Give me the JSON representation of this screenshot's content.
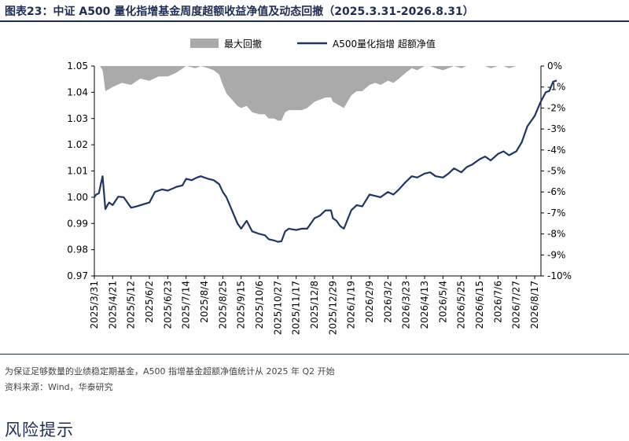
{
  "caption": {
    "prefix": "图表23：",
    "title": "中证 A500 量化指增基金周度超额收益净值及动态回撤（2025.3.31-2026.8.31）"
  },
  "chart_data": {
    "type": "area+line",
    "legend": [
      "最大回撤",
      "A500量化指增 超额净值"
    ],
    "legend_position": "top-center",
    "colors": {
      "drawdown": "#aaaaaa",
      "nav": "#1f3566"
    },
    "x_labels": [
      "2025/3/31",
      "2025/4/21",
      "2025/5/12",
      "2025/6/2",
      "2025/6/23",
      "2025/7/14",
      "2025/8/4",
      "2025/8/25",
      "2025/9/15",
      "2025/10/6",
      "2025/10/27",
      "2025/11/17",
      "2025/12/8",
      "2025/12/29",
      "2026/1/19",
      "2026/2/9",
      "2026/3/2",
      "2026/3/23",
      "2026/4/13",
      "2026/5/4",
      "2026/5/25",
      "2026/6/15",
      "2026/7/6",
      "2026/7/27",
      "2026/8/17"
    ],
    "y_left": {
      "ticks": [
        "0.97",
        "0.98",
        "0.99",
        "1.00",
        "1.01",
        "1.02",
        "1.03",
        "1.04",
        "1.05"
      ],
      "min": 0.97,
      "max": 1.05
    },
    "y_right": {
      "ticks": [
        "0%",
        "-1%",
        "-2%",
        "-3%",
        "-4%",
        "-5%",
        "-6%",
        "-7%",
        "-8%",
        "-9%",
        "-10%"
      ],
      "min": -10,
      "max": 0
    },
    "nav_keypoints": [
      [
        0,
        1.0
      ],
      [
        0.1,
        1.001
      ],
      [
        0.25,
        1.0015
      ],
      [
        0.35,
        1.005
      ],
      [
        0.45,
        1.008
      ],
      [
        0.6,
        0.9955
      ],
      [
        0.8,
        0.998
      ],
      [
        1,
        0.997
      ],
      [
        1.3,
        1.0002
      ],
      [
        1.6,
        1.0
      ],
      [
        2,
        0.996
      ],
      [
        2.3,
        0.9965
      ],
      [
        3,
        0.998
      ],
      [
        3.3,
        1.002
      ],
      [
        3.7,
        1.003
      ],
      [
        4,
        1.0025
      ],
      [
        4.5,
        1.004
      ],
      [
        4.8,
        1.0045
      ],
      [
        5,
        1.007
      ],
      [
        5.3,
        1.0065
      ],
      [
        5.6,
        1.0075
      ],
      [
        5.8,
        1.008
      ],
      [
        6.2,
        1.007
      ],
      [
        6.5,
        1.0065
      ],
      [
        6.8,
        1.005
      ],
      [
        7,
        1.002
      ],
      [
        7.2,
        1.0
      ],
      [
        7.5,
        0.995
      ],
      [
        7.8,
        0.99
      ],
      [
        8,
        0.988
      ],
      [
        8.3,
        0.991
      ],
      [
        8.6,
        0.987
      ],
      [
        9,
        0.986
      ],
      [
        9.3,
        0.9855
      ],
      [
        9.5,
        0.984
      ],
      [
        9.8,
        0.9835
      ],
      [
        10,
        0.983
      ],
      [
        10.2,
        0.9832
      ],
      [
        10.4,
        0.987
      ],
      [
        10.6,
        0.988
      ],
      [
        11,
        0.9875
      ],
      [
        11.3,
        0.988
      ],
      [
        11.6,
        0.988
      ],
      [
        12,
        0.992
      ],
      [
        12.3,
        0.993
      ],
      [
        12.6,
        0.995
      ],
      [
        12.9,
        0.995
      ],
      [
        13,
        0.992
      ],
      [
        13.2,
        0.991
      ],
      [
        13.4,
        0.989
      ],
      [
        13.6,
        0.988
      ],
      [
        14,
        0.995
      ],
      [
        14.3,
        0.997
      ],
      [
        14.6,
        0.9965
      ],
      [
        15,
        1.001
      ],
      [
        15.3,
        1.0005
      ],
      [
        15.6,
        1.0
      ],
      [
        16,
        1.002
      ],
      [
        16.3,
        1.001
      ],
      [
        16.6,
        1.003
      ],
      [
        17,
        1.006
      ],
      [
        17.3,
        1.008
      ],
      [
        17.6,
        1.0075
      ],
      [
        18,
        1.009
      ],
      [
        18.3,
        1.0095
      ],
      [
        18.6,
        1.008
      ],
      [
        19,
        1.0075
      ],
      [
        19.3,
        1.009
      ],
      [
        19.6,
        1.011
      ],
      [
        20,
        1.0095
      ],
      [
        20.3,
        1.0115
      ],
      [
        20.6,
        1.0125
      ],
      [
        21,
        1.0145
      ],
      [
        21.3,
        1.0155
      ],
      [
        21.6,
        1.014
      ],
      [
        22,
        1.0165
      ],
      [
        22.3,
        1.0175
      ],
      [
        22.6,
        1.016
      ],
      [
        23,
        1.0175
      ],
      [
        23.3,
        1.021
      ],
      [
        23.6,
        1.027
      ],
      [
        24,
        1.031
      ],
      [
        24.3,
        1.036
      ],
      [
        24.6,
        1.04
      ],
      [
        24.8,
        1.0405
      ],
      [
        25,
        1.044
      ],
      [
        25.2,
        1.0445
      ]
    ],
    "drawdown_keypoints": [
      [
        0,
        0
      ],
      [
        0.3,
        0
      ],
      [
        0.45,
        -0.2
      ],
      [
        0.6,
        -1.2
      ],
      [
        1.0,
        -1.0
      ],
      [
        1.5,
        -0.8
      ],
      [
        2,
        -0.9
      ],
      [
        2.5,
        -0.6
      ],
      [
        3,
        -0.7
      ],
      [
        3.5,
        -0.5
      ],
      [
        4,
        -0.5
      ],
      [
        4.5,
        -0.3
      ],
      [
        5,
        0
      ],
      [
        5.5,
        -0.1
      ],
      [
        5.8,
        0
      ],
      [
        6.2,
        -0.1
      ],
      [
        6.5,
        -0.2
      ],
      [
        6.8,
        -0.4
      ],
      [
        7,
        -0.9
      ],
      [
        7.2,
        -1.3
      ],
      [
        7.5,
        -1.6
      ],
      [
        7.8,
        -1.9
      ],
      [
        8,
        -2.0
      ],
      [
        8.3,
        -1.9
      ],
      [
        8.6,
        -2.2
      ],
      [
        9,
        -2.3
      ],
      [
        9.3,
        -2.3
      ],
      [
        9.5,
        -2.5
      ],
      [
        9.8,
        -2.5
      ],
      [
        10,
        -2.6
      ],
      [
        10.2,
        -2.6
      ],
      [
        10.4,
        -2.2
      ],
      [
        10.6,
        -2.1
      ],
      [
        11,
        -2.1
      ],
      [
        11.3,
        -2.1
      ],
      [
        11.6,
        -2.0
      ],
      [
        12,
        -1.7
      ],
      [
        12.3,
        -1.6
      ],
      [
        12.6,
        -1.5
      ],
      [
        12.9,
        -1.5
      ],
      [
        13,
        -1.7
      ],
      [
        13.2,
        -1.8
      ],
      [
        13.4,
        -1.9
      ],
      [
        13.6,
        -2.0
      ],
      [
        14,
        -1.4
      ],
      [
        14.3,
        -1.2
      ],
      [
        14.6,
        -1.2
      ],
      [
        15,
        -0.9
      ],
      [
        15.3,
        -0.8
      ],
      [
        15.6,
        -0.9
      ],
      [
        16,
        -0.7
      ],
      [
        16.3,
        -0.8
      ],
      [
        16.6,
        -0.6
      ],
      [
        17,
        -0.3
      ],
      [
        17.3,
        -0.1
      ],
      [
        17.6,
        -0.2
      ],
      [
        18,
        0
      ],
      [
        18.3,
        0
      ],
      [
        18.6,
        -0.1
      ],
      [
        19,
        -0.2
      ],
      [
        19.3,
        -0.1
      ],
      [
        19.6,
        0
      ],
      [
        20,
        -0.1
      ],
      [
        20.3,
        0
      ],
      [
        20.6,
        0
      ],
      [
        21,
        0
      ],
      [
        21.3,
        0
      ],
      [
        21.6,
        -0.1
      ],
      [
        22,
        0
      ],
      [
        22.3,
        0
      ],
      [
        22.6,
        -0.1
      ],
      [
        23,
        0
      ],
      [
        23.3,
        0
      ],
      [
        23.6,
        0
      ],
      [
        24,
        0
      ],
      [
        24.3,
        0
      ],
      [
        24.6,
        0
      ],
      [
        24.8,
        0
      ],
      [
        25,
        0
      ],
      [
        25.2,
        0
      ]
    ]
  },
  "footer": {
    "note": "为保证足够数量的业绩稳定期基金，A500 指增基金超额净值统计从 2025 年 Q2 开始",
    "source": "资料来源：Wind，华泰研究"
  },
  "section_title": "风险提示"
}
